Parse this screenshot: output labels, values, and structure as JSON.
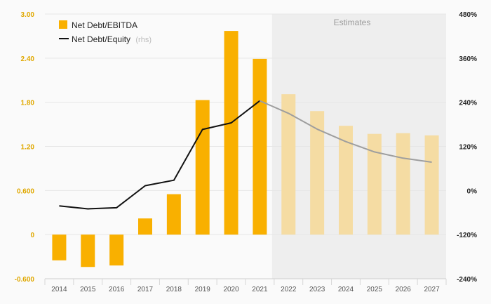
{
  "chart_data": {
    "type": "bar",
    "categories": [
      "2014",
      "2015",
      "2016",
      "2017",
      "2018",
      "2019",
      "2020",
      "2021",
      "2022",
      "2023",
      "2024",
      "2025",
      "2026",
      "2027"
    ],
    "series": [
      {
        "name": "Net Debt/EBITDA",
        "kind": "bar",
        "axis": "left",
        "values": [
          -0.35,
          -0.44,
          -0.42,
          0.22,
          0.55,
          1.83,
          2.77,
          2.39,
          1.91,
          1.68,
          1.48,
          1.37,
          1.38,
          1.35
        ]
      },
      {
        "name": "Net Debt/Equity",
        "name_note": "(rhs)",
        "kind": "line",
        "axis": "right",
        "values": [
          -42,
          -50,
          -47,
          13,
          28,
          166,
          184,
          244,
          210,
          167,
          133,
          105,
          88,
          77
        ]
      }
    ],
    "estimate_from": "2022",
    "estimates_label": "Estimates",
    "left_axis": {
      "ylim": [
        -0.6,
        3.0
      ],
      "ticks": [
        "-0.600",
        "0",
        "0.600",
        "1.20",
        "1.80",
        "2.40",
        "3.00"
      ],
      "tick_values": [
        -0.6,
        0,
        0.6,
        1.2,
        1.8,
        2.4,
        3.0
      ]
    },
    "right_axis": {
      "ylim": [
        -240,
        480
      ],
      "ticks": [
        "-240%",
        "-120%",
        "0%",
        "120%",
        "240%",
        "360%",
        "480%"
      ],
      "tick_values": [
        -240,
        -120,
        0,
        120,
        240,
        360,
        480
      ]
    },
    "grid": true,
    "legend_position": "top-left",
    "colors": {
      "bar": "#f9b000",
      "bar_estimate": "#f5dca3",
      "line": "#111111",
      "line_estimate": "#9e9e9e",
      "estimates_shade": "#eeeeee",
      "left_tick": "#e0a800"
    }
  }
}
